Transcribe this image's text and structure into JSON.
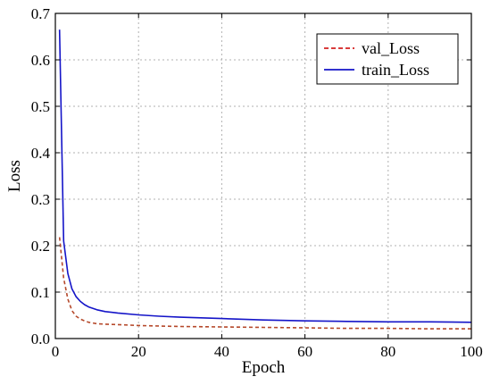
{
  "chart_data": {
    "type": "line",
    "title": "",
    "xlabel": "Epoch",
    "ylabel": "Loss",
    "xlim": [
      0,
      100
    ],
    "ylim": [
      0,
      0.7
    ],
    "xticks": [
      "0",
      "20",
      "40",
      "60",
      "80",
      "100"
    ],
    "yticks": [
      "0.0",
      "0.1",
      "0.2",
      "0.3",
      "0.4",
      "0.5",
      "0.6",
      "0.7"
    ],
    "grid": true,
    "legend_position": "top-right",
    "series": [
      {
        "name": "val_Loss",
        "color": "#b5482a",
        "legend_color": "#d42020",
        "style": "dashed",
        "x": [
          1,
          2,
          3,
          4,
          5,
          6,
          7,
          8,
          10,
          12,
          15,
          20,
          25,
          30,
          40,
          50,
          60,
          70,
          80,
          90,
          100
        ],
        "y": [
          0.218,
          0.13,
          0.085,
          0.06,
          0.048,
          0.042,
          0.038,
          0.035,
          0.032,
          0.031,
          0.03,
          0.028,
          0.027,
          0.026,
          0.025,
          0.024,
          0.023,
          0.022,
          0.022,
          0.021,
          0.021
        ]
      },
      {
        "name": "train_Loss",
        "color": "#1414c8",
        "legend_color": "#1414c8",
        "style": "solid",
        "x": [
          1,
          2,
          3,
          4,
          5,
          6,
          7,
          8,
          10,
          12,
          15,
          20,
          25,
          30,
          40,
          50,
          60,
          70,
          80,
          90,
          100
        ],
        "y": [
          0.665,
          0.21,
          0.14,
          0.107,
          0.09,
          0.08,
          0.073,
          0.068,
          0.062,
          0.058,
          0.055,
          0.051,
          0.048,
          0.046,
          0.043,
          0.04,
          0.038,
          0.037,
          0.036,
          0.036,
          0.035
        ]
      }
    ]
  }
}
